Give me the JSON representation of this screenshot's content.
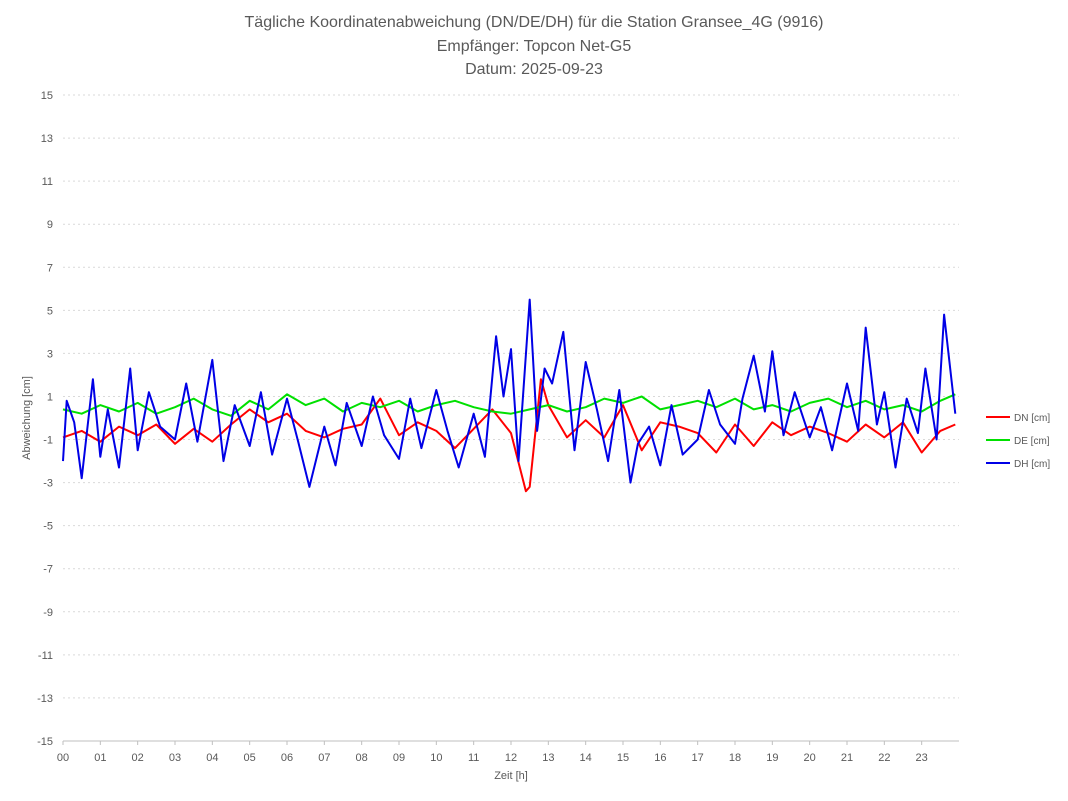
{
  "chart_data": {
    "type": "line",
    "title_lines": [
      "Tägliche Koordinatenabweichung (DN/DE/DH) für die Station Gransee_4G (9916)",
      "Empfänger: Topcon Net-G5",
      "Datum: 2025-09-23"
    ],
    "xlabel": "Zeit [h]",
    "ylabel": "Abweichung [cm]",
    "xlim": [
      0,
      24
    ],
    "ylim": [
      -15,
      15
    ],
    "x_ticks": [
      0,
      1,
      2,
      3,
      4,
      5,
      6,
      7,
      8,
      9,
      10,
      11,
      12,
      13,
      14,
      15,
      16,
      17,
      18,
      19,
      20,
      21,
      22,
      23
    ],
    "x_tick_labels": [
      "00",
      "01",
      "02",
      "03",
      "04",
      "05",
      "06",
      "07",
      "08",
      "09",
      "10",
      "11",
      "12",
      "13",
      "14",
      "15",
      "16",
      "17",
      "18",
      "19",
      "20",
      "21",
      "22",
      "23"
    ],
    "y_ticks": [
      15,
      13,
      11,
      9,
      7,
      5,
      3,
      1,
      -1,
      -3,
      -5,
      -7,
      -9,
      -11,
      -13,
      -15
    ],
    "y_tick_labels": [
      "15",
      "13",
      "11",
      "9",
      "7",
      "5",
      "3",
      "1",
      "-1",
      "-3",
      "-5",
      "-7",
      "-9",
      "-11",
      "-13",
      "-15"
    ],
    "grid": "horizontal dotted",
    "legend_position": "right",
    "series": [
      {
        "name": "DN [cm]",
        "color": "#ff0000",
        "x": [
          0,
          0.5,
          1,
          1.5,
          2,
          2.5,
          3,
          3.5,
          4,
          4.5,
          5,
          5.5,
          6,
          6.5,
          7,
          7.5,
          8,
          8.5,
          9,
          9.5,
          10,
          10.5,
          11,
          11.5,
          12,
          12.4,
          12.5,
          12.8,
          13,
          13.5,
          14,
          14.5,
          15,
          15.5,
          16,
          16.5,
          17,
          17.5,
          18,
          18.5,
          19,
          19.5,
          20,
          20.5,
          21,
          21.5,
          22,
          22.5,
          23,
          23.5,
          23.9
        ],
        "values": [
          -0.9,
          -0.6,
          -1.1,
          -0.4,
          -0.8,
          -0.3,
          -1.2,
          -0.5,
          -1.1,
          -0.3,
          0.4,
          -0.2,
          0.2,
          -0.6,
          -0.9,
          -0.5,
          -0.3,
          0.9,
          -0.8,
          -0.2,
          -0.6,
          -1.4,
          -0.5,
          0.4,
          -0.7,
          -3.4,
          -3.2,
          1.8,
          0.6,
          -0.9,
          -0.1,
          -0.9,
          0.6,
          -1.5,
          -0.2,
          -0.4,
          -0.7,
          -1.6,
          -0.3,
          -1.3,
          -0.2,
          -0.8,
          -0.4,
          -0.7,
          -1.1,
          -0.3,
          -0.9,
          -0.2,
          -1.6,
          -0.6,
          -0.3
        ]
      },
      {
        "name": "DE [cm]",
        "color": "#00e000",
        "x": [
          0,
          0.5,
          1,
          1.5,
          2,
          2.5,
          3,
          3.5,
          4,
          4.5,
          5,
          5.5,
          6,
          6.5,
          7,
          7.5,
          8,
          8.5,
          9,
          9.5,
          10,
          10.5,
          11,
          11.5,
          12,
          12.5,
          13,
          13.5,
          14,
          14.5,
          15,
          15.5,
          16,
          16.5,
          17,
          17.5,
          18,
          18.5,
          19,
          19.5,
          20,
          20.5,
          21,
          21.5,
          22,
          22.5,
          23,
          23.5,
          23.9
        ],
        "values": [
          0.4,
          0.2,
          0.6,
          0.3,
          0.7,
          0.2,
          0.5,
          0.9,
          0.4,
          0.1,
          0.8,
          0.4,
          1.1,
          0.6,
          0.9,
          0.3,
          0.7,
          0.5,
          0.8,
          0.3,
          0.6,
          0.8,
          0.5,
          0.3,
          0.2,
          0.4,
          0.6,
          0.3,
          0.5,
          0.9,
          0.7,
          1.0,
          0.4,
          0.6,
          0.8,
          0.5,
          0.9,
          0.4,
          0.6,
          0.3,
          0.7,
          0.9,
          0.5,
          0.8,
          0.4,
          0.6,
          0.3,
          0.8,
          1.1
        ]
      },
      {
        "name": "DH [cm]",
        "color": "#0000e6",
        "x": [
          0,
          0.1,
          0.3,
          0.5,
          0.8,
          1,
          1.2,
          1.5,
          1.8,
          2,
          2.3,
          2.6,
          3,
          3.3,
          3.6,
          4,
          4.3,
          4.6,
          5,
          5.3,
          5.6,
          6,
          6.3,
          6.6,
          7,
          7.3,
          7.6,
          8,
          8.3,
          8.6,
          9,
          9.3,
          9.6,
          10,
          10.3,
          10.6,
          11,
          11.3,
          11.6,
          11.8,
          12,
          12.2,
          12.5,
          12.7,
          12.9,
          13.1,
          13.4,
          13.7,
          14,
          14.3,
          14.6,
          14.9,
          15.2,
          15.4,
          15.7,
          16,
          16.3,
          16.6,
          17,
          17.3,
          17.6,
          18,
          18.2,
          18.5,
          18.8,
          19,
          19.3,
          19.6,
          20,
          20.3,
          20.6,
          21,
          21.3,
          21.5,
          21.8,
          22,
          22.3,
          22.6,
          22.9,
          23.1,
          23.4,
          23.6,
          23.9
        ],
        "values": [
          -2,
          0.8,
          -0.2,
          -2.8,
          1.8,
          -1.8,
          0.4,
          -2.3,
          2.3,
          -1.5,
          1.2,
          -0.4,
          -1.0,
          1.6,
          -1.1,
          2.7,
          -2.0,
          0.6,
          -1.3,
          1.2,
          -1.7,
          0.9,
          -1.1,
          -3.2,
          -0.4,
          -2.2,
          0.7,
          -1.3,
          1.0,
          -0.8,
          -1.9,
          0.9,
          -1.4,
          1.3,
          -0.6,
          -2.3,
          0.2,
          -1.8,
          3.8,
          1.0,
          3.2,
          -2.0,
          5.5,
          -0.6,
          2.3,
          1.6,
          4.0,
          -1.5,
          2.6,
          0.4,
          -2.0,
          1.3,
          -3.0,
          -1.2,
          -0.4,
          -2.2,
          0.6,
          -1.7,
          -1.0,
          1.3,
          -0.3,
          -1.2,
          0.9,
          2.9,
          0.3,
          3.1,
          -0.8,
          1.2,
          -0.9,
          0.5,
          -1.5,
          1.6,
          -0.6,
          4.2,
          -0.3,
          1.2,
          -2.3,
          0.9,
          -0.7,
          2.3,
          -1.0,
          4.8,
          0.2
        ]
      }
    ]
  }
}
